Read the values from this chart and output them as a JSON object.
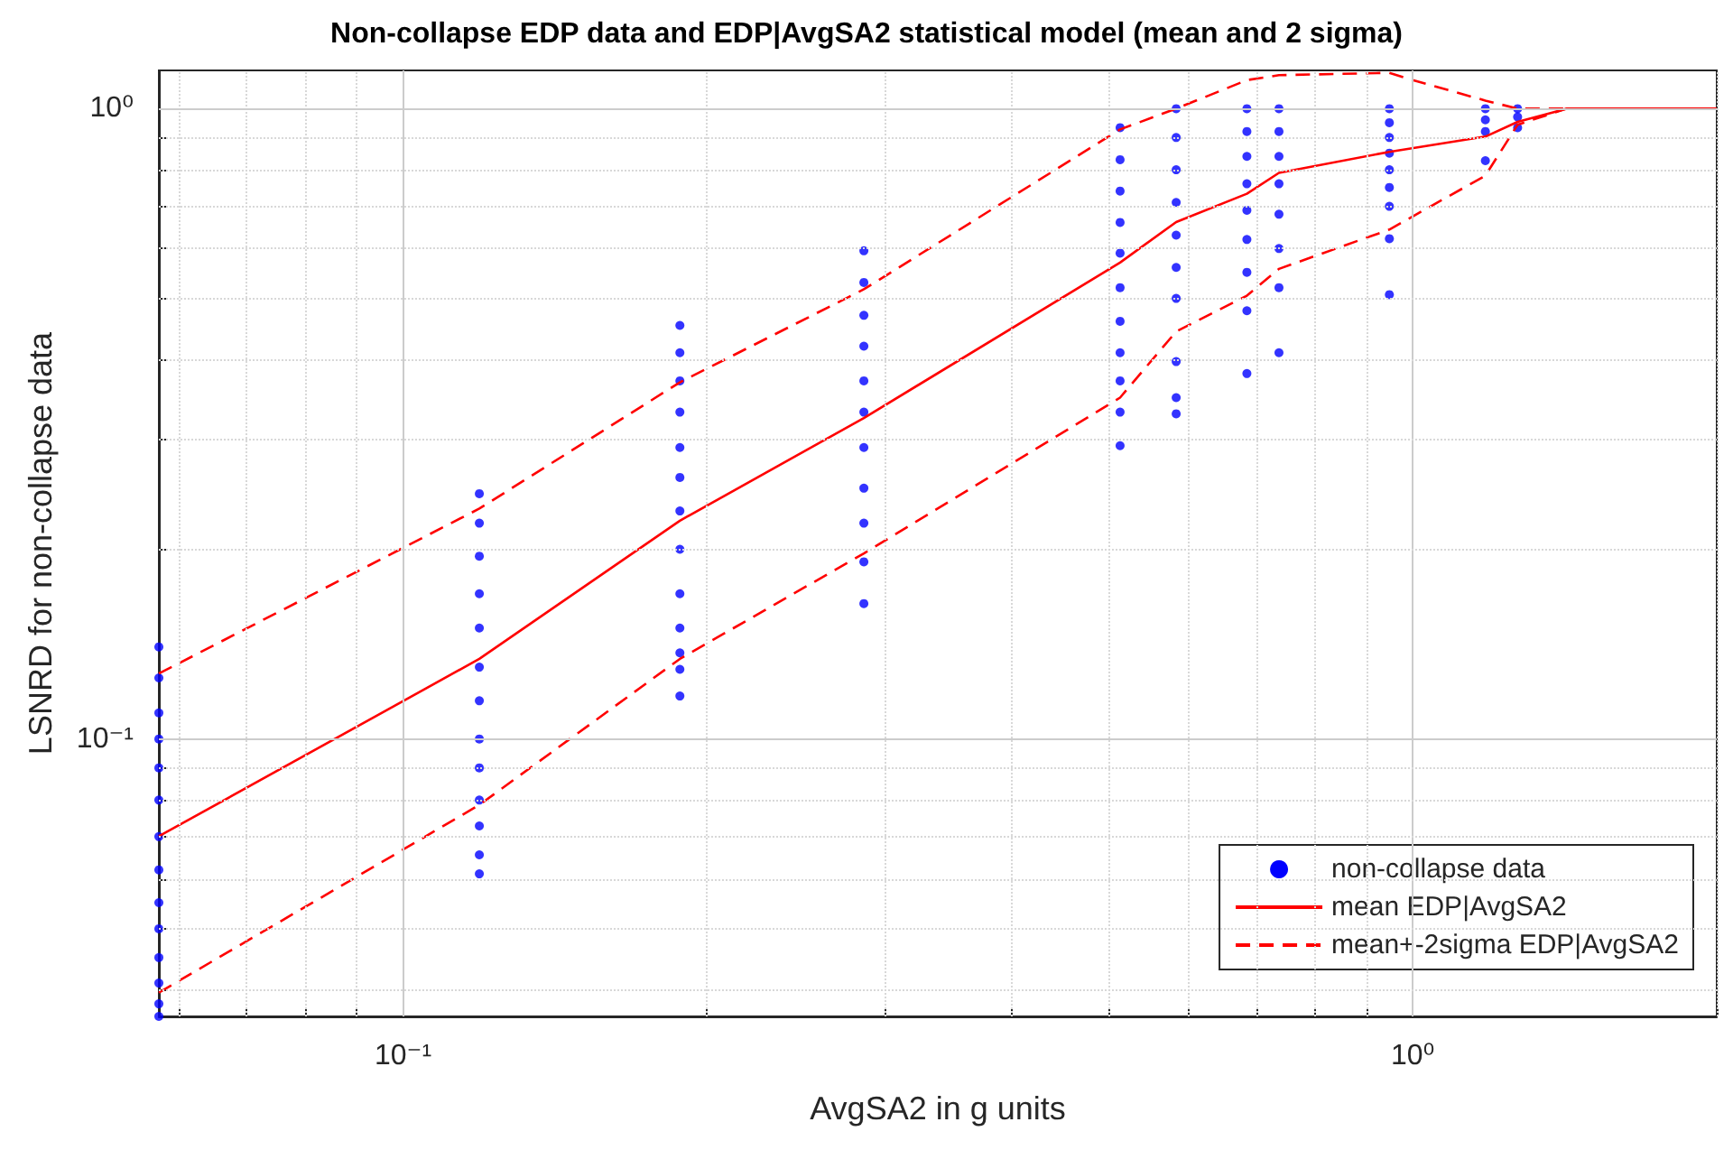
{
  "chart_data": {
    "type": "line",
    "title": "Non-collapse EDP data and EDP|AvgSA2 statistical model (mean and 2 sigma)",
    "xlabel": "AvgSA2 in g units",
    "ylabel": "LSNRD for non-collapse data",
    "log": "xy",
    "grid": true,
    "legend": "bottom right",
    "xlim": [
      0.0573,
      2
    ],
    "ylim": [
      0.0363,
      1.15
    ],
    "xticks": [
      {
        "value": 0.06,
        "label": null
      },
      {
        "value": 0.07,
        "label": null
      },
      {
        "value": 0.08,
        "label": null
      },
      {
        "value": 0.09,
        "label": null
      },
      {
        "value": 0.1,
        "label": "10⁻¹"
      },
      {
        "value": 0.2,
        "label": null
      },
      {
        "value": 0.3,
        "label": null
      },
      {
        "value": 0.4,
        "label": null
      },
      {
        "value": 0.5,
        "label": null
      },
      {
        "value": 0.6,
        "label": null
      },
      {
        "value": 0.7,
        "label": null
      },
      {
        "value": 0.8,
        "label": null
      },
      {
        "value": 0.9,
        "label": null
      },
      {
        "value": 1,
        "label": "10⁰"
      },
      {
        "value": 2,
        "label": null
      }
    ],
    "yticks": [
      {
        "value": 0.04,
        "label": null
      },
      {
        "value": 0.05,
        "label": null
      },
      {
        "value": 0.06,
        "label": null
      },
      {
        "value": 0.07,
        "label": null
      },
      {
        "value": 0.08,
        "label": null
      },
      {
        "value": 0.09,
        "label": null
      },
      {
        "value": 0.1,
        "label": "10⁻¹"
      },
      {
        "value": 0.2,
        "label": null
      },
      {
        "value": 0.3,
        "label": null
      },
      {
        "value": 0.4,
        "label": null
      },
      {
        "value": 0.5,
        "label": null
      },
      {
        "value": 0.6,
        "label": null
      },
      {
        "value": 0.7,
        "label": null
      },
      {
        "value": 0.8,
        "label": null
      },
      {
        "value": 0.9,
        "label": null
      },
      {
        "value": 1,
        "label": "10⁰"
      }
    ],
    "series": [
      {
        "name": "non-collapse data",
        "type": "scatter",
        "marker": "circle",
        "color": "#0000ff",
        "x": [
          0.0573,
          0.0573,
          0.0573,
          0.0573,
          0.0573,
          0.0573,
          0.0573,
          0.0573,
          0.0573,
          0.0573,
          0.0573,
          0.0573,
          0.0573,
          0.0573,
          0.119,
          0.119,
          0.119,
          0.119,
          0.119,
          0.119,
          0.119,
          0.119,
          0.119,
          0.119,
          0.119,
          0.119,
          0.119,
          0.188,
          0.188,
          0.188,
          0.188,
          0.188,
          0.188,
          0.188,
          0.188,
          0.188,
          0.188,
          0.188,
          0.188,
          0.188,
          0.286,
          0.286,
          0.286,
          0.286,
          0.286,
          0.286,
          0.286,
          0.286,
          0.286,
          0.286,
          0.286,
          0.513,
          0.513,
          0.513,
          0.513,
          0.513,
          0.513,
          0.513,
          0.513,
          0.513,
          0.513,
          0.513,
          0.583,
          0.583,
          0.583,
          0.583,
          0.583,
          0.583,
          0.583,
          0.583,
          0.583,
          0.583,
          0.685,
          0.685,
          0.685,
          0.685,
          0.685,
          0.685,
          0.685,
          0.685,
          0.685,
          0.737,
          0.737,
          0.737,
          0.737,
          0.737,
          0.737,
          0.737,
          0.737,
          0.948,
          0.948,
          0.948,
          0.948,
          0.948,
          0.948,
          0.948,
          0.948,
          0.948,
          1.18,
          1.18,
          1.18,
          1.18,
          1.27,
          1.27,
          1.27
        ],
        "values": [
          0.14,
          0.125,
          0.11,
          0.1,
          0.09,
          0.08,
          0.07,
          0.062,
          0.055,
          0.05,
          0.045,
          0.041,
          0.038,
          0.0363,
          0.245,
          0.22,
          0.195,
          0.17,
          0.15,
          0.13,
          0.115,
          0.1,
          0.09,
          0.08,
          0.0728,
          0.0655,
          0.0611,
          0.453,
          0.41,
          0.37,
          0.33,
          0.29,
          0.26,
          0.23,
          0.2,
          0.17,
          0.15,
          0.137,
          0.129,
          0.117,
          0.595,
          0.53,
          0.47,
          0.42,
          0.37,
          0.33,
          0.29,
          0.25,
          0.22,
          0.191,
          0.164,
          0.933,
          0.83,
          0.74,
          0.66,
          0.59,
          0.52,
          0.46,
          0.41,
          0.37,
          0.33,
          0.292,
          1,
          0.9,
          0.8,
          0.71,
          0.63,
          0.56,
          0.5,
          0.397,
          0.348,
          0.328,
          1,
          0.92,
          0.84,
          0.76,
          0.69,
          0.62,
          0.55,
          0.478,
          0.38,
          1,
          0.92,
          0.84,
          0.76,
          0.68,
          0.6,
          0.52,
          0.41,
          1,
          0.95,
          0.9,
          0.85,
          0.8,
          0.75,
          0.7,
          0.622,
          0.507,
          1,
          0.96,
          0.92,
          0.827,
          1,
          0.97,
          0.933
        ]
      },
      {
        "name": "mean EDP|AvgSA2",
        "marker": "none",
        "line_style": "solid",
        "color": "#ff0000",
        "x": [
          0.0573,
          0.119,
          0.188,
          0.286,
          0.513,
          0.583,
          0.685,
          0.737,
          0.948,
          1.18,
          1.27,
          1.42,
          2
        ],
        "values": [
          0.0701,
          0.134,
          0.222,
          0.323,
          0.57,
          0.661,
          0.733,
          0.791,
          0.854,
          0.903,
          0.953,
          1,
          1
        ]
      },
      {
        "name": "mean+-2sigma EDP|AvgSA2",
        "marker": "none",
        "line_style": "dashed",
        "color": "#ff0000",
        "x": [
          0.0573,
          0.119,
          0.188,
          0.286,
          0.513,
          0.583,
          0.685,
          0.737,
          0.948,
          1,
          1.18,
          1.27,
          1.42,
          2
        ],
        "values": [
          0.127,
          0.232,
          0.368,
          0.517,
          0.927,
          1,
          1.11,
          1.13,
          1.14,
          1.11,
          1.03,
          1,
          1,
          1
        ]
      },
      {
        "marker": "none",
        "line_style": "dashed",
        "color": "#ff0000",
        "x": [
          0.0573,
          0.119,
          0.188,
          0.286,
          0.513,
          0.583,
          0.685,
          0.737,
          0.948,
          1.18,
          1.27,
          1.42,
          2
        ],
        "values": [
          0.0396,
          0.0786,
          0.134,
          0.197,
          0.348,
          0.443,
          0.505,
          0.557,
          0.643,
          0.783,
          0.943,
          1,
          1
        ]
      }
    ]
  }
}
